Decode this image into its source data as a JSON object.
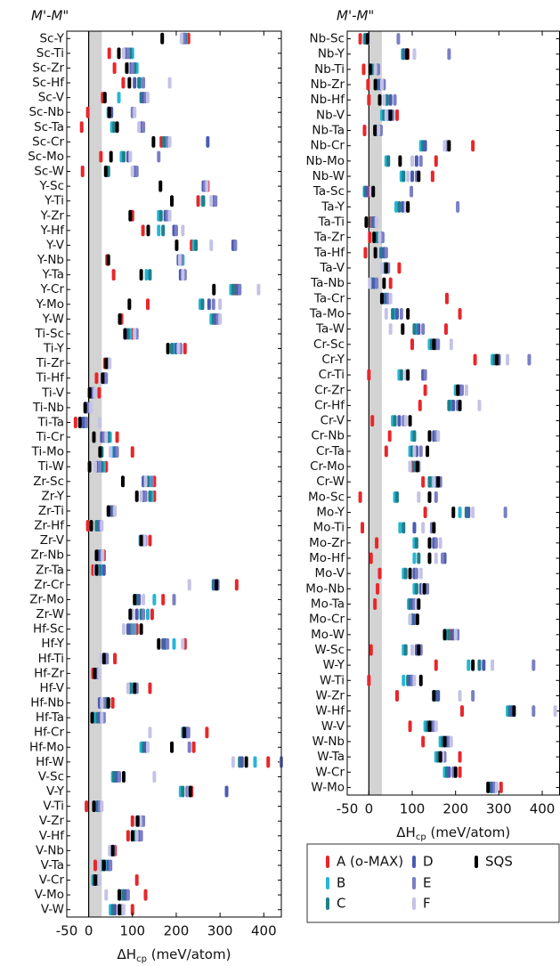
{
  "chart_data": [
    {
      "type": "strip",
      "title": "M'-M\"",
      "xlabel": [
        "ΔH",
        "cp",
        " (meV/atom)"
      ],
      "xlim": [
        -50,
        440
      ],
      "xticks": [
        -50,
        0,
        100,
        200,
        300,
        400
      ],
      "shaded_xrange": [
        0,
        30
      ],
      "zero_line": true,
      "categories": [
        "Sc-Y",
        "Sc-Ti",
        "Sc-Zr",
        "Sc-Hf",
        "Sc-V",
        "Sc-Nb",
        "Sc-Ta",
        "Sc-Cr",
        "Sc-Mo",
        "Sc-W",
        "Y-Sc",
        "Y-Ti",
        "Y-Zr",
        "Y-Hf",
        "Y-V",
        "Y-Nb",
        "Y-Ta",
        "Y-Cr",
        "Y-Mo",
        "Y-W",
        "Ti-Sc",
        "Ti-Y",
        "Ti-Zr",
        "Ti-Hf",
        "Ti-V",
        "Ti-Nb",
        "Ti-Ta",
        "Ti-Cr",
        "Ti-Mo",
        "Ti-W",
        "Zr-Sc",
        "Zr-Y",
        "Zr-Ti",
        "Zr-Hf",
        "Zr-V",
        "Zr-Nb",
        "Zr-Ta",
        "Zr-Cr",
        "Zr-Mo",
        "Zr-W",
        "Hf-Sc",
        "Hf-Y",
        "Hf-Ti",
        "Hf-Zr",
        "Hf-V",
        "Hf-Nb",
        "Hf-Ta",
        "Hf-Cr",
        "Hf-Mo",
        "Hf-W",
        "V-Sc",
        "V-Y",
        "V-Ti",
        "V-Zr",
        "V-Hf",
        "V-Nb",
        "V-Ta",
        "V-Cr",
        "V-Mo",
        "V-W"
      ],
      "series": [
        {
          "name": "A (o-MAX)",
          "color": "#e8262a",
          "values": [
            228,
            47,
            59,
            79,
            32,
            -2,
            -16,
            166,
            28,
            -14,
            272,
            250,
            100,
            124,
            235,
            42,
            57,
            335,
            135,
            75,
            100,
            220,
            37,
            18,
            24,
            2,
            -30,
            65,
            100,
            40,
            150,
            150,
            55,
            -2,
            140,
            35,
            10,
            338,
            170,
            145,
            110,
            220,
            60,
            10,
            140,
            55,
            10,
            270,
            240,
            410,
            60,
            235,
            -5,
            100,
            90,
            60,
            15,
            110,
            130,
            100
          ]
        },
        {
          "name": "B",
          "color": "#27b5d4",
          "values": [
            222,
            100,
            110,
            118,
            69,
            45,
            53,
            175,
            75,
            42,
            268,
            260,
            160,
            160,
            240,
            215,
            132,
            325,
            255,
            280,
            95,
            195,
            42,
            35,
            10,
            -2,
            -15,
            49,
            55,
            35,
            140,
            145,
            50,
            20,
            118,
            28,
            30,
            290,
            150,
            135,
            105,
            195,
            40,
            16,
            100,
            40,
            15,
            215,
            120,
            380,
            55,
            210,
            18,
            110,
            105,
            50,
            40,
            10,
            75,
            50
          ]
        },
        {
          "name": "C",
          "color": "#1f7f8a",
          "values": [
            220,
            95,
            105,
            115,
            120,
            47,
            58,
            172,
            80,
            45,
            266,
            262,
            165,
            170,
            245,
            210,
            140,
            330,
            260,
            285,
            90,
            190,
            44,
            36,
            8,
            -4,
            -10,
            45,
            30,
            30,
            135,
            140,
            52,
            18,
            122,
            25,
            25,
            285,
            110,
            120,
            95,
            175,
            35,
            18,
            95,
            38,
            20,
            222,
            125,
            345,
            58,
            215,
            20,
            115,
            108,
            52,
            30,
            12,
            80,
            55
          ]
        },
        {
          "name": "D",
          "color": "#4b5bb0",
          "values": [
            215,
            85,
            95,
            105,
            125,
            52,
            120,
            272,
            90,
            105,
            262,
            285,
            175,
            195,
            330,
            205,
            210,
            340,
            275,
            290,
            85,
            200,
            45,
            38,
            6,
            -6,
            -12,
            30,
            60,
            20,
            125,
            125,
            48,
            25,
            125,
            22,
            35,
            288,
            115,
            110,
            90,
            170,
            38,
            20,
            105,
            25,
            25,
            225,
            130,
            350,
            65,
            315,
            22,
            120,
            115,
            55,
            45,
            16,
            85,
            60
          ]
        },
        {
          "name": "E",
          "color": "#7b7fc4",
          "values": [
            218,
            90,
            100,
            125,
            130,
            100,
            125,
            180,
            160,
            110,
            265,
            290,
            180,
            200,
            335,
            212,
            220,
            345,
            285,
            295,
            110,
            210,
            47,
            40,
            12,
            -3,
            -5,
            35,
            65,
            25,
            145,
            130,
            58,
            28,
            130,
            30,
            20,
            295,
            195,
            125,
            100,
            180,
            42,
            22,
            110,
            35,
            35,
            228,
            230,
            440,
            70,
            225,
            25,
            125,
            120,
            58,
            50,
            20,
            90,
            75
          ]
        },
        {
          "name": "F",
          "color": "#c4c3e6",
          "values": [
            212,
            80,
            90,
            185,
            135,
            105,
            115,
            185,
            95,
            100,
            270,
            280,
            185,
            215,
            280,
            208,
            215,
            388,
            300,
            300,
            105,
            205,
            48,
            30,
            14,
            5,
            25,
            40,
            50,
            15,
            130,
            120,
            60,
            30,
            128,
            32,
            15,
            230,
            125,
            100,
            80,
            215,
            28,
            24,
            90,
            30,
            30,
            140,
            135,
            330,
            150,
            230,
            30,
            118,
            110,
            48,
            25,
            25,
            40,
            80
          ]
        },
        {
          "name": "SQS",
          "color": "#000000",
          "values": [
            168,
            69,
            87,
            93,
            37,
            47,
            65,
            148,
            51,
            39,
            164,
            190,
            95,
            136,
            201,
            45,
            120,
            286,
            93,
            71,
            83,
            181,
            40,
            32,
            2,
            -8,
            -20,
            12,
            26,
            2,
            78,
            110,
            45,
            6,
            120,
            18,
            18,
            292,
            105,
            95,
            120,
            160,
            35,
            14,
            105,
            45,
            8,
            218,
            190,
            360,
            80,
            232,
            12,
            112,
            100,
            55,
            35,
            15,
            70,
            70
          ]
        }
      ]
    },
    {
      "type": "strip",
      "title": "M'-M\"",
      "xlabel": [
        "ΔH",
        "cp",
        " (meV/atom)"
      ],
      "xlim": [
        -50,
        440
      ],
      "xticks": [
        -50,
        0,
        100,
        200,
        300,
        400
      ],
      "shaded_xrange": [
        0,
        30
      ],
      "zero_line": true,
      "categories": [
        "Nb-Sc",
        "Nb-Y",
        "Nb-Ti",
        "Nb-Zr",
        "Nb-Hf",
        "Nb-V",
        "Nb-Ta",
        "Nb-Cr",
        "Nb-Mo",
        "Nb-W",
        "Ta-Sc",
        "Ta-Y",
        "Ta-Ti",
        "Ta-Zr",
        "Ta-Hf",
        "Ta-V",
        "Ta-Nb",
        "Ta-Cr",
        "Ta-Mo",
        "Ta-W",
        "Cr-Sc",
        "Cr-Y",
        "Cr-Ti",
        "Cr-Zr",
        "Cr-Hf",
        "Cr-V",
        "Cr-Nb",
        "Cr-Ta",
        "Cr-Mo",
        "Cr-W",
        "Mo-Sc",
        "Mo-Y",
        "Mo-Ti",
        "Mo-Zr",
        "Mo-Hf",
        "Mo-V",
        "Mo-Nb",
        "Mo-Ta",
        "Mo-Cr",
        "Mo-W",
        "W-Sc",
        "W-Y",
        "W-Ti",
        "W-Zr",
        "W-Hf",
        "W-V",
        "W-Nb",
        "W-Ta",
        "W-Cr",
        "W-Mo"
      ],
      "series": [
        {
          "name": "A (o-MAX)",
          "color": "#e8262a",
          "values": [
            -20,
            90,
            -12,
            -2,
            0,
            65,
            -10,
            240,
            155,
            147,
            2,
            90,
            5,
            2,
            -8,
            70,
            50,
            180,
            210,
            178,
            100,
            245,
            0,
            130,
            118,
            8,
            48,
            40,
            100,
            125,
            -20,
            130,
            -15,
            18,
            5,
            25,
            20,
            14,
            100,
            190,
            5,
            155,
            0,
            65,
            215,
            95,
            125,
            210,
            210,
            305
          ]
        },
        {
          "name": "B",
          "color": "#27b5d4",
          "values": [
            -10,
            78,
            5,
            20,
            40,
            30,
            18,
            120,
            40,
            75,
            -10,
            63,
            8,
            22,
            30,
            35,
            5,
            30,
            60,
            110,
            140,
            285,
            70,
            200,
            190,
            55,
            100,
            95,
            95,
            145,
            60,
            210,
            72,
            105,
            105,
            80,
            105,
            92,
            95,
            180,
            80,
            230,
            80,
            150,
            320,
            130,
            165,
            155,
            175,
            280
          ]
        },
        {
          "name": "C",
          "color": "#1f7f8a",
          "values": [
            -8,
            80,
            8,
            18,
            42,
            35,
            20,
            125,
            45,
            80,
            -8,
            70,
            10,
            18,
            28,
            38,
            8,
            35,
            55,
            105,
            145,
            290,
            75,
            205,
            185,
            60,
            105,
            100,
            105,
            140,
            65,
            225,
            80,
            110,
            115,
            85,
            110,
            95,
            100,
            185,
            85,
            255,
            90,
            155,
            325,
            135,
            170,
            160,
            180,
            282
          ]
        },
        {
          "name": "D",
          "color": "#4b5bb0",
          "values": [
            -5,
            85,
            20,
            25,
            50,
            45,
            25,
            130,
            110,
            100,
            -5,
            78,
            12,
            28,
            35,
            42,
            12,
            40,
            65,
            115,
            155,
            300,
            125,
            210,
            195,
            70,
            150,
            110,
            110,
            155,
            140,
            230,
            105,
            150,
            175,
            105,
            120,
            100,
            105,
            195,
            110,
            265,
            95,
            160,
            330,
            145,
            180,
            165,
            185,
            285
          ]
        },
        {
          "name": "E",
          "color": "#7b7fc4",
          "values": [
            68,
            185,
            22,
            35,
            60,
            55,
            28,
            180,
            120,
            110,
            98,
            205,
            15,
            32,
            40,
            45,
            18,
            45,
            75,
            125,
            160,
            370,
            130,
            215,
            205,
            80,
            155,
            120,
            115,
            165,
            155,
            315,
            145,
            155,
            170,
            110,
            135,
            105,
            110,
            205,
            120,
            380,
            100,
            240,
            380,
            150,
            185,
            175,
            195,
            290
          ]
        },
        {
          "name": "F",
          "color": "#c4c3e6",
          "values": [
            0,
            105,
            15,
            30,
            35,
            40,
            22,
            175,
            100,
            90,
            5,
            85,
            18,
            25,
            20,
            30,
            2,
            50,
            40,
            50,
            190,
            320,
            85,
            225,
            255,
            85,
            160,
            105,
            95,
            150,
            115,
            240,
            125,
            165,
            155,
            120,
            125,
            110,
            95,
            200,
            100,
            285,
            105,
            210,
            430,
            155,
            190,
            170,
            200,
            295
          ]
        },
        {
          "name": "SQS",
          "color": "#000000",
          "values": [
            -3,
            88,
            3,
            15,
            25,
            50,
            14,
            185,
            72,
            115,
            10,
            90,
            -6,
            12,
            15,
            40,
            35,
            30,
            90,
            78,
            150,
            295,
            90,
            205,
            210,
            95,
            140,
            135,
            112,
            160,
            140,
            195,
            150,
            140,
            140,
            95,
            128,
            115,
            112,
            175,
            115,
            240,
            120,
            150,
            335,
            140,
            175,
            165,
            200,
            275
          ]
        }
      ]
    }
  ]
}
